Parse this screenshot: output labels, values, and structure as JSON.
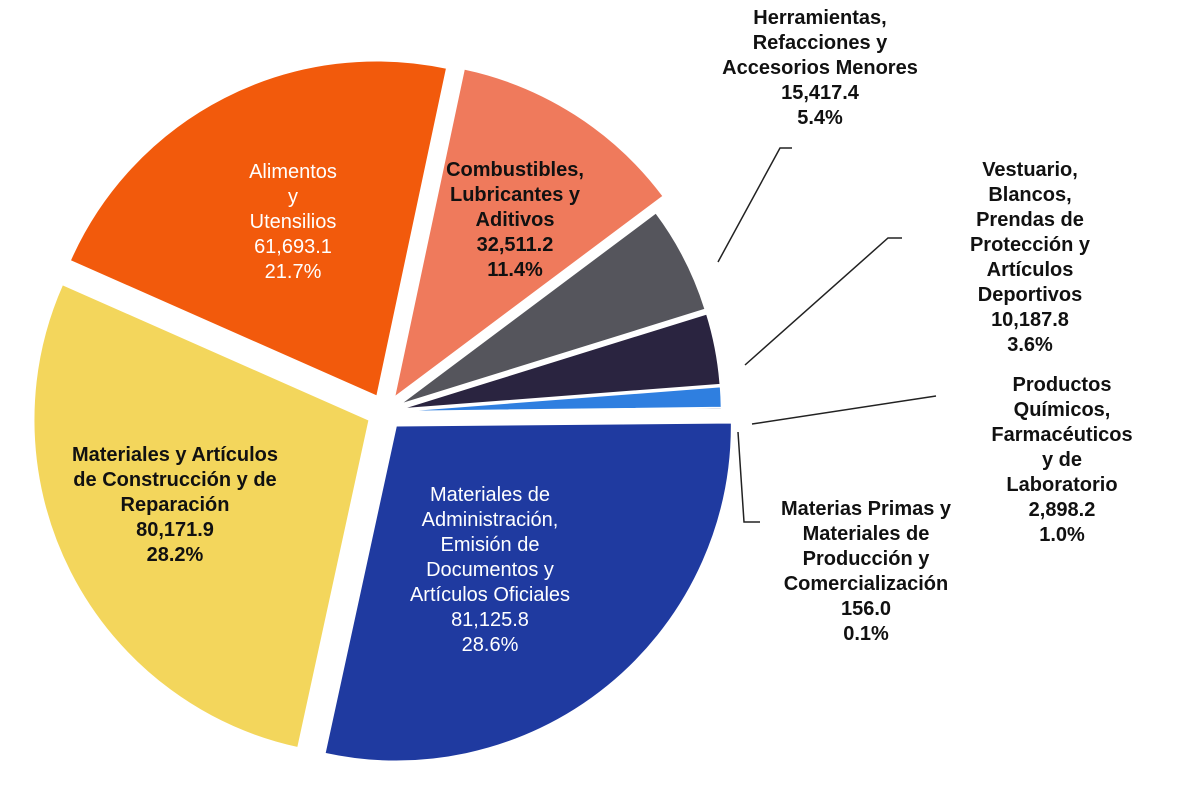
{
  "chart_data": {
    "type": "pie",
    "categories": [
      "Combustibles,\nLubricantes y\nAditivos",
      "Herramientas,\nRefacciones y\nAccesorios Menores",
      "Vestuario, Blancos,\nPrendas de\nProtección y Artículos\nDeportivos",
      "Productos Químicos,\nFarmacéuticos y de\nLaboratorio",
      "Materias Primas y\nMateriales de\nProducción y\nComercialización",
      "Materiales de\nAdministración,\nEmisión de\nDocumentos y\nArtículos Oficiales",
      "Materiales y Artículos\nde Construcción y de\nReparación",
      "Alimentos\ny\nUtensilios"
    ],
    "values": [
      32511.2,
      15417.4,
      10187.8,
      2898.2,
      156.0,
      81125.8,
      80171.9,
      61693.1
    ],
    "value_labels": [
      "32,511.2",
      "15,417.4",
      "10,187.8",
      "2,898.2",
      "156.0",
      "81,125.8",
      "80,171.9",
      "61,693.1"
    ],
    "percents": [
      11.4,
      5.4,
      3.6,
      1.0,
      0.1,
      28.6,
      28.2,
      21.7
    ],
    "percent_labels": [
      "11.4%",
      "5.4%",
      "3.6%",
      "1.0%",
      "0.1%",
      "28.6%",
      "28.2%",
      "21.7%"
    ],
    "colors": [
      "#ef7a5c",
      "#55555c",
      "#2a2440",
      "#2f7fe0",
      "#1b2a6a",
      "#1f3aa0",
      "#f3d65c",
      "#f25a0c"
    ]
  }
}
